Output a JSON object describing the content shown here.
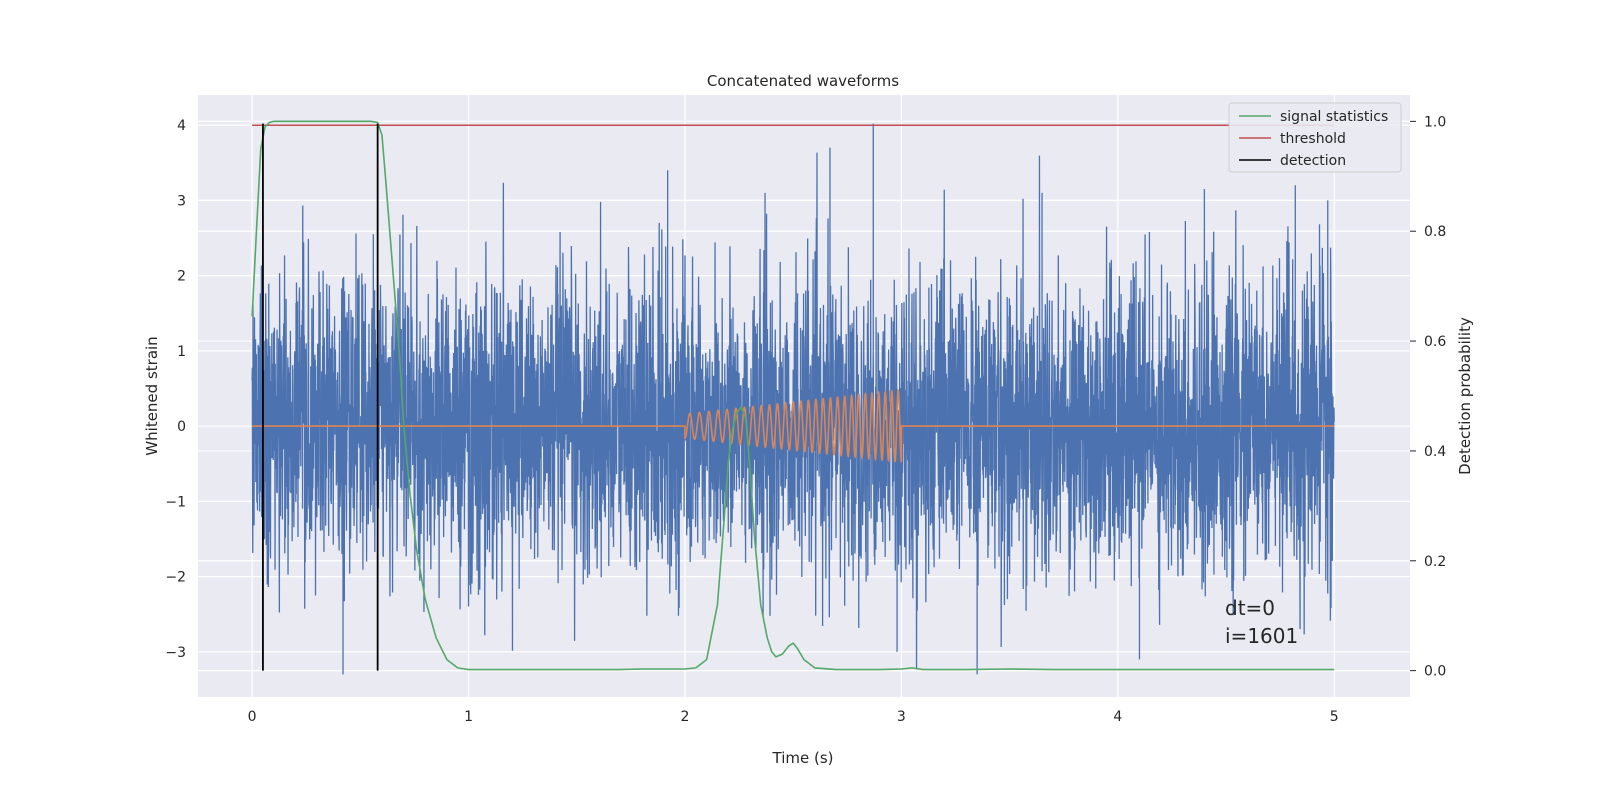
{
  "chart_data": {
    "type": "line",
    "title": "Concatenated waveforms",
    "xlabel": "Time (s)",
    "ylabel": "Whitened strain",
    "y2label": "Detection probability",
    "xlim": [
      -0.25,
      5.35
    ],
    "ylim": [
      -3.6,
      4.4
    ],
    "y2lim": [
      -0.048,
      1.048
    ],
    "xticks": [
      "0",
      "1",
      "2",
      "3",
      "4",
      "5"
    ],
    "xtick_values": [
      0,
      1,
      2,
      3,
      4,
      5
    ],
    "yticks": [
      "−3",
      "−2",
      "−1",
      "0",
      "1",
      "2",
      "3",
      "4"
    ],
    "ytick_values": [
      -3,
      -2,
      -1,
      0,
      1,
      2,
      3,
      4
    ],
    "y2ticks": [
      "0.0",
      "0.2",
      "0.4",
      "0.6",
      "0.8",
      "1.0"
    ],
    "y2tick_values": [
      0,
      0.2,
      0.4,
      0.6,
      0.8,
      1.0
    ],
    "grid": true,
    "legend_position": "top-right",
    "colors": {
      "strain": "#4c72b0",
      "injection": "#dd8452",
      "signal_statistics": "#55a868",
      "threshold": "#c44e52",
      "detection": "#000000",
      "plot_bg": "#eaeaf2",
      "grid": "#ffffff"
    },
    "series": [
      {
        "name": "signal statistics",
        "axis": "right",
        "x": [
          0.0,
          0.02,
          0.04,
          0.06,
          0.08,
          0.1,
          0.15,
          0.2,
          0.3,
          0.4,
          0.5,
          0.55,
          0.58,
          0.6,
          0.62,
          0.65,
          0.68,
          0.7,
          0.73,
          0.76,
          0.8,
          0.85,
          0.9,
          0.95,
          1.0,
          1.2,
          1.5,
          1.7,
          1.8,
          2.0,
          2.05,
          2.1,
          2.15,
          2.18,
          2.2,
          2.22,
          2.24,
          2.26,
          2.28,
          2.3,
          2.32,
          2.35,
          2.38,
          2.4,
          2.42,
          2.45,
          2.48,
          2.5,
          2.52,
          2.55,
          2.6,
          2.7,
          2.9,
          3.0,
          3.05,
          3.1,
          3.3,
          3.5,
          3.7,
          4.0,
          4.5,
          5.0
        ],
        "values": [
          0.645,
          0.8,
          0.95,
          0.99,
          0.998,
          1.0,
          1.0,
          1.0,
          1.0,
          1.0,
          1.0,
          1.0,
          0.998,
          0.975,
          0.88,
          0.73,
          0.58,
          0.45,
          0.32,
          0.22,
          0.13,
          0.06,
          0.02,
          0.005,
          0.002,
          0.002,
          0.002,
          0.002,
          0.003,
          0.003,
          0.005,
          0.02,
          0.12,
          0.27,
          0.38,
          0.44,
          0.47,
          0.48,
          0.46,
          0.37,
          0.25,
          0.12,
          0.06,
          0.035,
          0.025,
          0.03,
          0.045,
          0.05,
          0.04,
          0.02,
          0.005,
          0.002,
          0.002,
          0.003,
          0.005,
          0.002,
          0.002,
          0.003,
          0.002,
          0.002,
          0.002,
          0.002
        ]
      },
      {
        "name": "threshold",
        "axis": "right",
        "x": [
          0,
          5
        ],
        "values": [
          0.993,
          0.993
        ]
      },
      {
        "name": "detection",
        "axis": "left",
        "x": [
          0.05,
          0.58
        ],
        "values": [
          4.02,
          4.02
        ]
      }
    ],
    "strain_series": {
      "axis": "left",
      "x_range": [
        0,
        5
      ],
      "typical_range": [
        -1.4,
        1.4
      ],
      "max": 4.02,
      "min": -3.3
    },
    "injection_series": {
      "axis": "left",
      "x_range": [
        2,
        3
      ],
      "amplitude_start": 0.16,
      "amplitude_end": 0.48
    },
    "annotations": [
      "dt=0",
      "i=1601"
    ]
  }
}
